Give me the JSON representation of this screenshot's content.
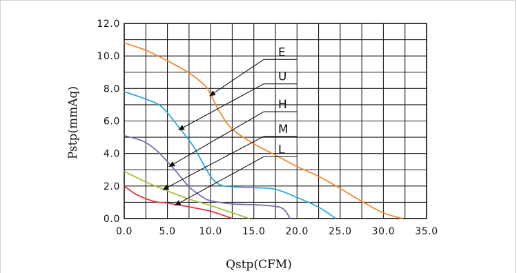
{
  "chart_data": {
    "type": "line",
    "title": "",
    "xlabel": "Qstp(CFM)",
    "ylabel": "Pstp(mmAq)",
    "xlim": [
      0,
      35
    ],
    "ylim": [
      0,
      12
    ],
    "grid": true,
    "x_ticks": [
      "0.0",
      "5.0",
      "10.0",
      "15.0",
      "20.0",
      "25.0",
      "30.0",
      "35.0"
    ],
    "y_ticks": [
      "0.0",
      "2.0",
      "4.0",
      "6.0",
      "8.0",
      "10.0",
      "12.0"
    ],
    "series": [
      {
        "name": "E",
        "color": "#f28a2e",
        "points": [
          [
            0,
            10.8
          ],
          [
            2.5,
            10.35
          ],
          [
            5,
            9.7
          ],
          [
            7.5,
            8.95
          ],
          [
            9.3,
            8.2
          ],
          [
            10,
            7.65
          ],
          [
            11,
            6.6
          ],
          [
            12.5,
            5.5
          ],
          [
            15,
            4.6
          ],
          [
            17.5,
            3.9
          ],
          [
            20,
            3.2
          ],
          [
            22.5,
            2.6
          ],
          [
            25,
            1.85
          ],
          [
            27.5,
            1.05
          ],
          [
            30,
            0.35
          ],
          [
            32.2,
            0
          ]
        ],
        "label_y": 9.78
      },
      {
        "name": "U",
        "color": "#2ba9d8",
        "points": [
          [
            0,
            7.8
          ],
          [
            2.5,
            7.35
          ],
          [
            4,
            7.0
          ],
          [
            5,
            6.5
          ],
          [
            6.5,
            5.5
          ],
          [
            8,
            4.45
          ],
          [
            9,
            3.5
          ],
          [
            10,
            2.6
          ],
          [
            11,
            2.1
          ],
          [
            12.5,
            1.95
          ],
          [
            15,
            1.9
          ],
          [
            17.5,
            1.8
          ],
          [
            20,
            1.3
          ],
          [
            22.5,
            0.7
          ],
          [
            24.5,
            0
          ]
        ],
        "label_y": 8.28
      },
      {
        "name": "H",
        "color": "#7b6bb5",
        "points": [
          [
            0,
            5.1
          ],
          [
            2,
            4.8
          ],
          [
            3.5,
            4.3
          ],
          [
            5,
            3.5
          ],
          [
            6,
            2.9
          ],
          [
            7.5,
            1.95
          ],
          [
            9,
            1.35
          ],
          [
            10,
            1.1
          ],
          [
            12.5,
            0.9
          ],
          [
            15,
            0.85
          ],
          [
            17.5,
            0.75
          ],
          [
            18.5,
            0.55
          ],
          [
            19.2,
            0
          ]
        ],
        "label_y": 6.57
      },
      {
        "name": "M",
        "color": "#9fc33b",
        "points": [
          [
            0,
            2.9
          ],
          [
            2.5,
            2.25
          ],
          [
            5,
            1.7
          ],
          [
            7.5,
            1.2
          ],
          [
            10,
            0.8
          ],
          [
            12.5,
            0.35
          ],
          [
            14.5,
            0
          ]
        ],
        "label_y": 5.05
      },
      {
        "name": "L",
        "color": "#e03541",
        "points": [
          [
            0,
            2.0
          ],
          [
            1.5,
            1.45
          ],
          [
            3.5,
            1.05
          ],
          [
            5,
            0.95
          ],
          [
            7.5,
            0.72
          ],
          [
            10,
            0.45
          ],
          [
            12.5,
            0
          ]
        ],
        "label_y": 3.8
      }
    ]
  }
}
